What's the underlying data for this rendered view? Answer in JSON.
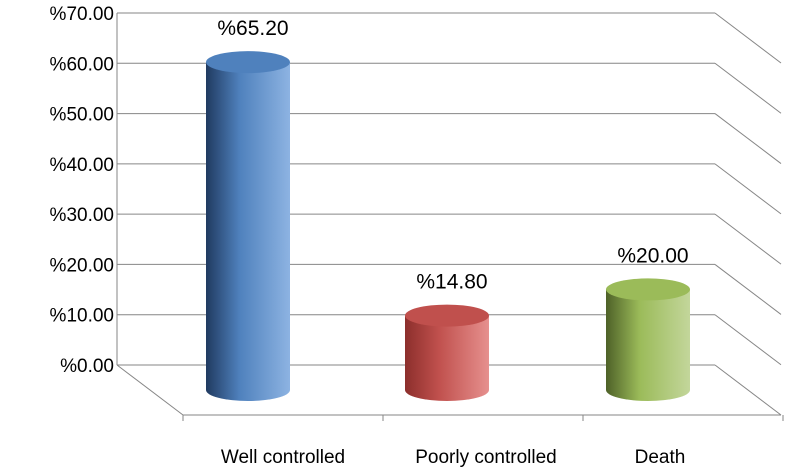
{
  "chart_data": {
    "type": "bar",
    "style": "3d-cylinder",
    "categories": [
      "Well controlled",
      "Poorly controlled",
      "Death"
    ],
    "values": [
      65.2,
      14.8,
      20.0
    ],
    "data_labels": [
      "%65.20",
      "%14.80",
      "%20.00"
    ],
    "ytick_labels": [
      "%0.00",
      "%10.00",
      "%20.00",
      "%30.00",
      "%40.00",
      "%50.00",
      "%60.00",
      "%70.00"
    ],
    "ytick_values": [
      0,
      10,
      20,
      30,
      40,
      50,
      60,
      70
    ],
    "ylim": [
      0,
      70
    ],
    "grid": true,
    "legend": "none",
    "colors": {
      "Well controlled": [
        "#203a60",
        "#4f81bd",
        "#8db3e2"
      ],
      "Poorly controlled": [
        "#8c2f2c",
        "#c0504d",
        "#e6908e"
      ],
      "Death": [
        "#4e6128",
        "#9bbb59",
        "#c3d69b"
      ]
    },
    "grid_color": "#868686"
  }
}
